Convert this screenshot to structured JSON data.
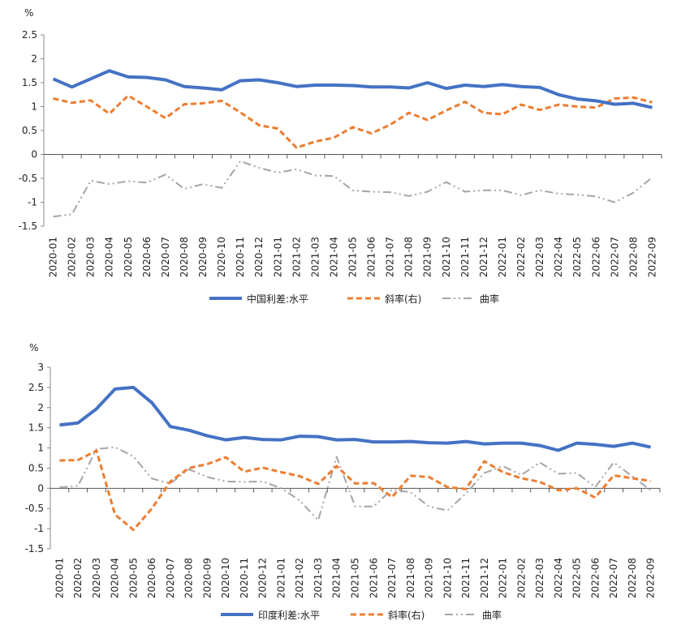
{
  "chart_data": [
    {
      "type": "line",
      "unit_label": "%",
      "ylim": [
        -1.5,
        2.5
      ],
      "yticks": [
        "2.5",
        "2",
        "1.5",
        "1",
        "0.5",
        "0",
        "-0.5",
        "-1",
        "-1.5"
      ],
      "grid": false,
      "legend_position": "bottom",
      "categories": [
        "2020-01",
        "2020-02",
        "2020-03",
        "2020-04",
        "2020-05",
        "2020-06",
        "2020-07",
        "2020-08",
        "2020-09",
        "2020-10",
        "2020-11",
        "2020-12",
        "2021-01",
        "2021-02",
        "2021-03",
        "2021-04",
        "2021-05",
        "2021-06",
        "2021-07",
        "2021-08",
        "2021-09",
        "2021-10",
        "2021-11",
        "2021-12",
        "2022-01",
        "2022-02",
        "2022-03",
        "2022-04",
        "2022-05",
        "2022-06",
        "2022-07",
        "2022-08",
        "2022-09"
      ],
      "series": [
        {
          "name": "中国利差:水平",
          "color": "#4472C4",
          "style": "solid",
          "values": [
            1.58,
            1.41,
            1.58,
            1.75,
            1.62,
            1.61,
            1.56,
            1.42,
            1.39,
            1.35,
            1.54,
            1.56,
            1.5,
            1.42,
            1.45,
            1.45,
            1.44,
            1.41,
            1.41,
            1.39,
            1.5,
            1.38,
            1.45,
            1.42,
            1.46,
            1.42,
            1.4,
            1.25,
            1.16,
            1.12,
            1.05,
            1.07,
            0.98
          ]
        },
        {
          "name": "斜率(右)",
          "color": "#ED7D31",
          "style": "dash",
          "values": [
            1.17,
            1.08,
            1.13,
            0.85,
            1.23,
            1.0,
            0.76,
            1.05,
            1.07,
            1.12,
            0.88,
            0.61,
            0.54,
            0.14,
            0.27,
            0.35,
            0.57,
            0.44,
            0.62,
            0.87,
            0.72,
            0.92,
            1.1,
            0.87,
            0.84,
            1.04,
            0.93,
            1.04,
            1.0,
            0.98,
            1.17,
            1.19,
            1.09
          ]
        },
        {
          "name": "曲率",
          "color": "#A5A5A5",
          "style": "dashdotdot",
          "values": [
            -1.3,
            -1.25,
            -0.55,
            -0.62,
            -0.56,
            -0.59,
            -0.42,
            -0.72,
            -0.62,
            -0.7,
            -0.14,
            -0.28,
            -0.38,
            -0.31,
            -0.44,
            -0.45,
            -0.75,
            -0.78,
            -0.79,
            -0.87,
            -0.78,
            -0.58,
            -0.78,
            -0.75,
            -0.75,
            -0.85,
            -0.75,
            -0.82,
            -0.84,
            -0.88,
            -1.0,
            -0.8,
            -0.48
          ]
        }
      ]
    },
    {
      "type": "line",
      "unit_label": "%",
      "ylim": [
        -1.5,
        3
      ],
      "yticks": [
        "3",
        "2.5",
        "2",
        "1.5",
        "1",
        "0.5",
        "0",
        "-0.5",
        "-1",
        "-1.5"
      ],
      "grid": false,
      "legend_position": "bottom",
      "categories": [
        "2020-01",
        "2020-02",
        "2020-03",
        "2020-04",
        "2020-05",
        "2020-06",
        "2020-07",
        "2020-08",
        "2020-09",
        "2020-10",
        "2020-11",
        "2020-12",
        "2021-01",
        "2021-02",
        "2021-03",
        "2021-04",
        "2021-05",
        "2021-06",
        "2021-07",
        "2021-08",
        "2021-09",
        "2021-10",
        "2021-11",
        "2021-12",
        "2022-01",
        "2022-02",
        "2022-03",
        "2022-04",
        "2022-05",
        "2022-06",
        "2022-07",
        "2022-08",
        "2022-09"
      ],
      "series": [
        {
          "name": "印度利差:水平",
          "color": "#4472C4",
          "style": "solid",
          "values": [
            1.57,
            1.62,
            1.97,
            2.46,
            2.5,
            2.12,
            1.53,
            1.44,
            1.3,
            1.2,
            1.26,
            1.21,
            1.2,
            1.29,
            1.28,
            1.2,
            1.21,
            1.15,
            1.15,
            1.16,
            1.13,
            1.12,
            1.16,
            1.1,
            1.12,
            1.12,
            1.06,
            0.94,
            1.12,
            1.09,
            1.04,
            1.12,
            1.02
          ]
        },
        {
          "name": "斜率(右)",
          "color": "#ED7D31",
          "style": "dash",
          "values": [
            0.69,
            0.7,
            0.93,
            -0.65,
            -1.03,
            -0.5,
            0.17,
            0.5,
            0.6,
            0.77,
            0.41,
            0.51,
            0.4,
            0.3,
            0.11,
            0.55,
            0.12,
            0.13,
            -0.22,
            0.31,
            0.28,
            0.03,
            -0.02,
            0.67,
            0.4,
            0.25,
            0.16,
            -0.05,
            0.0,
            -0.23,
            0.32,
            0.25,
            0.18
          ]
        },
        {
          "name": "曲率",
          "color": "#A5A5A5",
          "style": "dashdotdot",
          "values": [
            0.02,
            0.06,
            0.97,
            1.02,
            0.79,
            0.24,
            0.12,
            0.47,
            0.28,
            0.17,
            0.16,
            0.17,
            0.0,
            -0.3,
            -0.79,
            0.78,
            -0.45,
            -0.45,
            -0.03,
            -0.1,
            -0.45,
            -0.55,
            -0.13,
            0.38,
            0.55,
            0.33,
            0.64,
            0.36,
            0.38,
            0.03,
            0.64,
            0.3,
            -0.05
          ]
        }
      ]
    }
  ]
}
